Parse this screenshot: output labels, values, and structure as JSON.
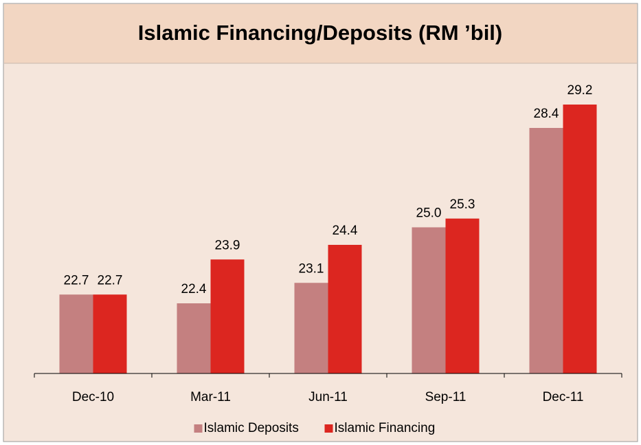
{
  "chart_data": {
    "type": "bar",
    "title": "Islamic Financing/Deposits (RM ’bil)",
    "categories": [
      "Dec-10",
      "Mar-11",
      "Jun-11",
      "Sep-11",
      "Dec-11"
    ],
    "series": [
      {
        "name": "Islamic Deposits",
        "color": "#c48080",
        "values": [
          22.7,
          22.4,
          23.1,
          25.0,
          28.4
        ],
        "value_labels": [
          "22.7",
          "22.4",
          "23.1",
          "25.0",
          "28.4"
        ]
      },
      {
        "name": "Islamic Financing",
        "color": "#dc2620",
        "values": [
          22.7,
          23.9,
          24.4,
          25.3,
          29.2
        ],
        "value_labels": [
          "22.7",
          "23.9",
          "24.4",
          "25.3",
          "29.2"
        ]
      }
    ],
    "ylim": [
      20,
      30
    ],
    "legend": "bottom"
  }
}
